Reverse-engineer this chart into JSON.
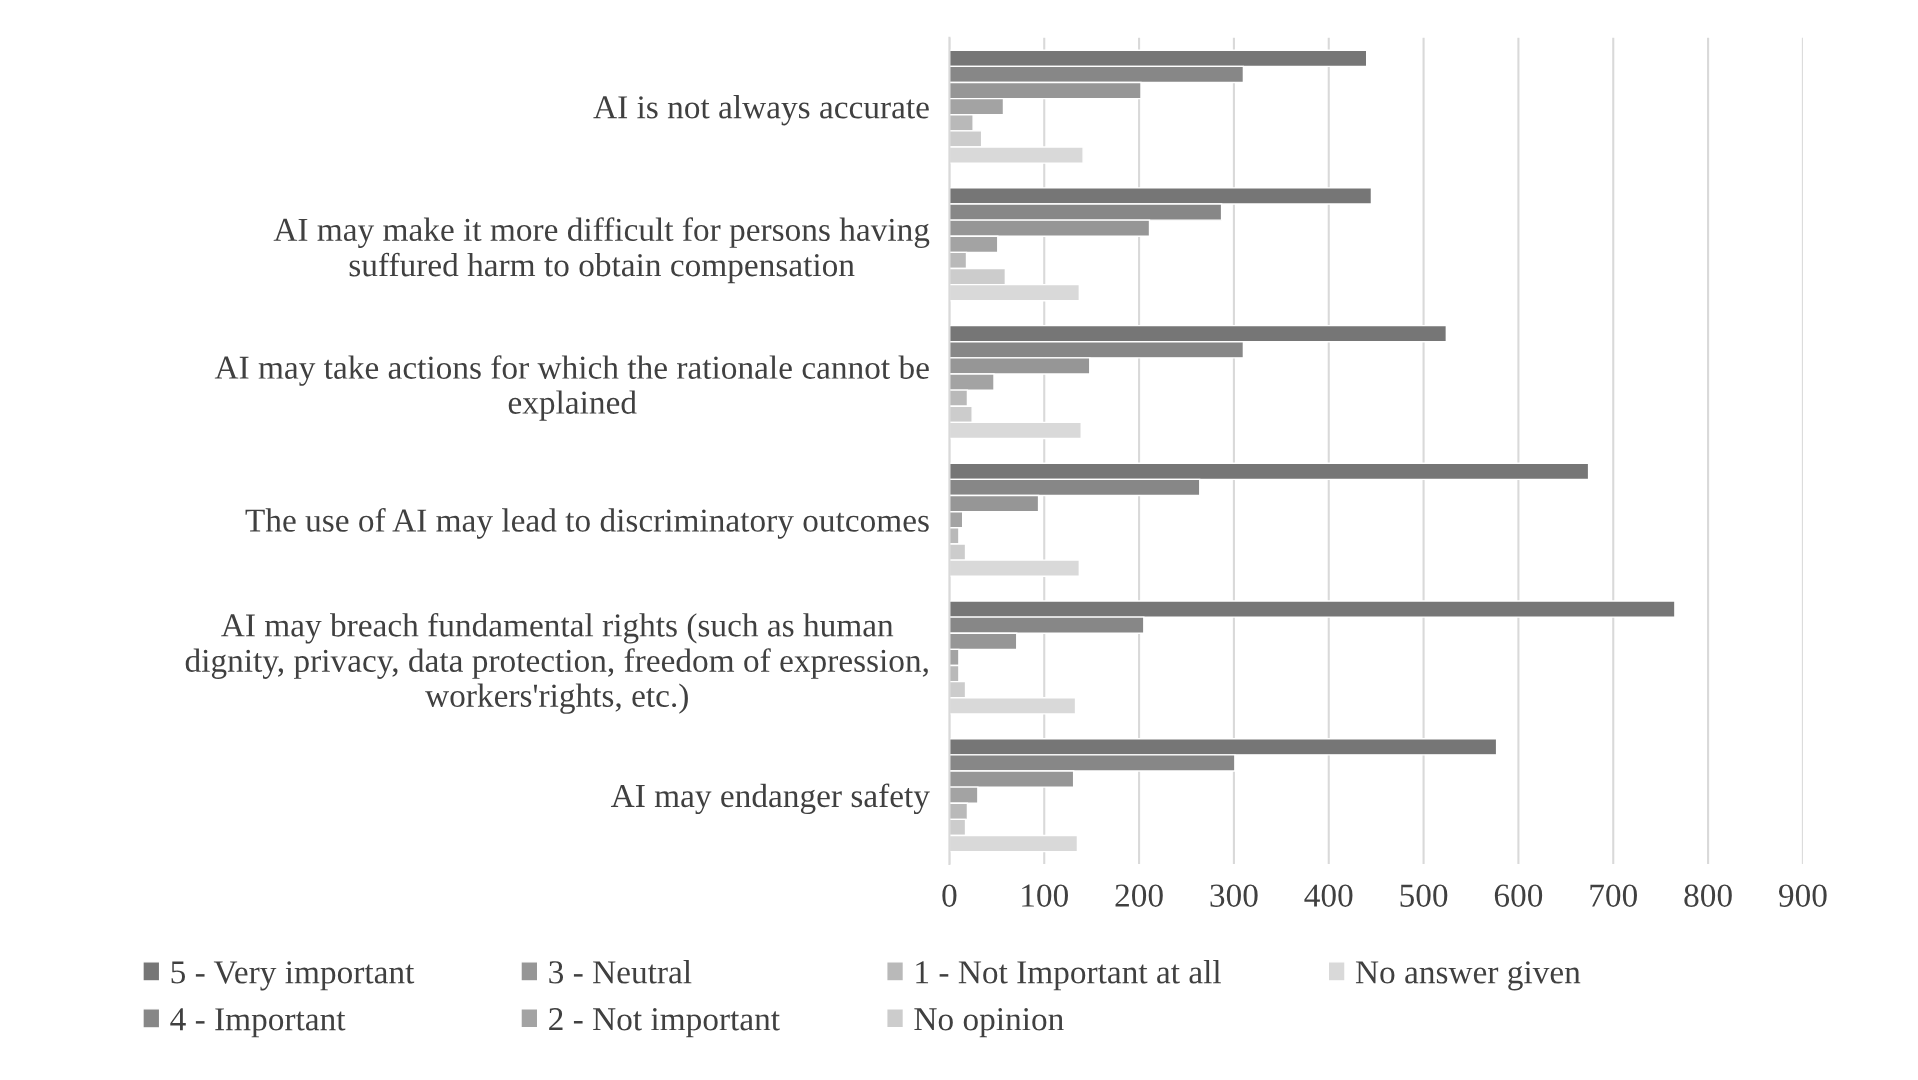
{
  "chart_data": {
    "type": "bar",
    "orientation": "horizontal",
    "categories": [
      "AI is not always accurate",
      "AI may make it more difficult for persons having\nsuffured harm to obtain compensation",
      "AI may take actions for which the rationale cannot be\nexplained",
      "The use of AI may lead to discriminatory outcomes",
      "AI may breach fundamental rights (such as human\ndignity, privacy, data protection, freedom of expression,\nworkers'rights, etc.)",
      "AI may endanger safety"
    ],
    "series": [
      {
        "name": "5 - Very important",
        "color": "#767676",
        "values": [
          440,
          445,
          524,
          674,
          765,
          577
        ]
      },
      {
        "name": "4 - Important",
        "color": "#878787",
        "values": [
          310,
          287,
          310,
          264,
          205,
          301
        ]
      },
      {
        "name": "3 - Neutral",
        "color": "#969696",
        "values": [
          202,
          211,
          148,
          94,
          71,
          131
        ]
      },
      {
        "name": "2 - Not important",
        "color": "#a3a3a3",
        "values": [
          57,
          51,
          47,
          14,
          10,
          30
        ]
      },
      {
        "name": "1 - Not Important at all",
        "color": "#b9b9b9",
        "values": [
          25,
          18,
          19,
          10,
          10,
          19
        ]
      },
      {
        "name": "No opinion",
        "color": "#cccccc",
        "values": [
          34,
          59,
          24,
          17,
          17,
          17
        ]
      },
      {
        "name": "No answer given",
        "color": "#d9d9d9",
        "values": [
          141,
          137,
          139,
          137,
          133,
          135
        ]
      }
    ],
    "xlim": [
      0,
      900
    ],
    "xticks": [
      0,
      100,
      200,
      300,
      400,
      500,
      600,
      700,
      800,
      900
    ],
    "grid": "x",
    "legend": "bottom"
  }
}
